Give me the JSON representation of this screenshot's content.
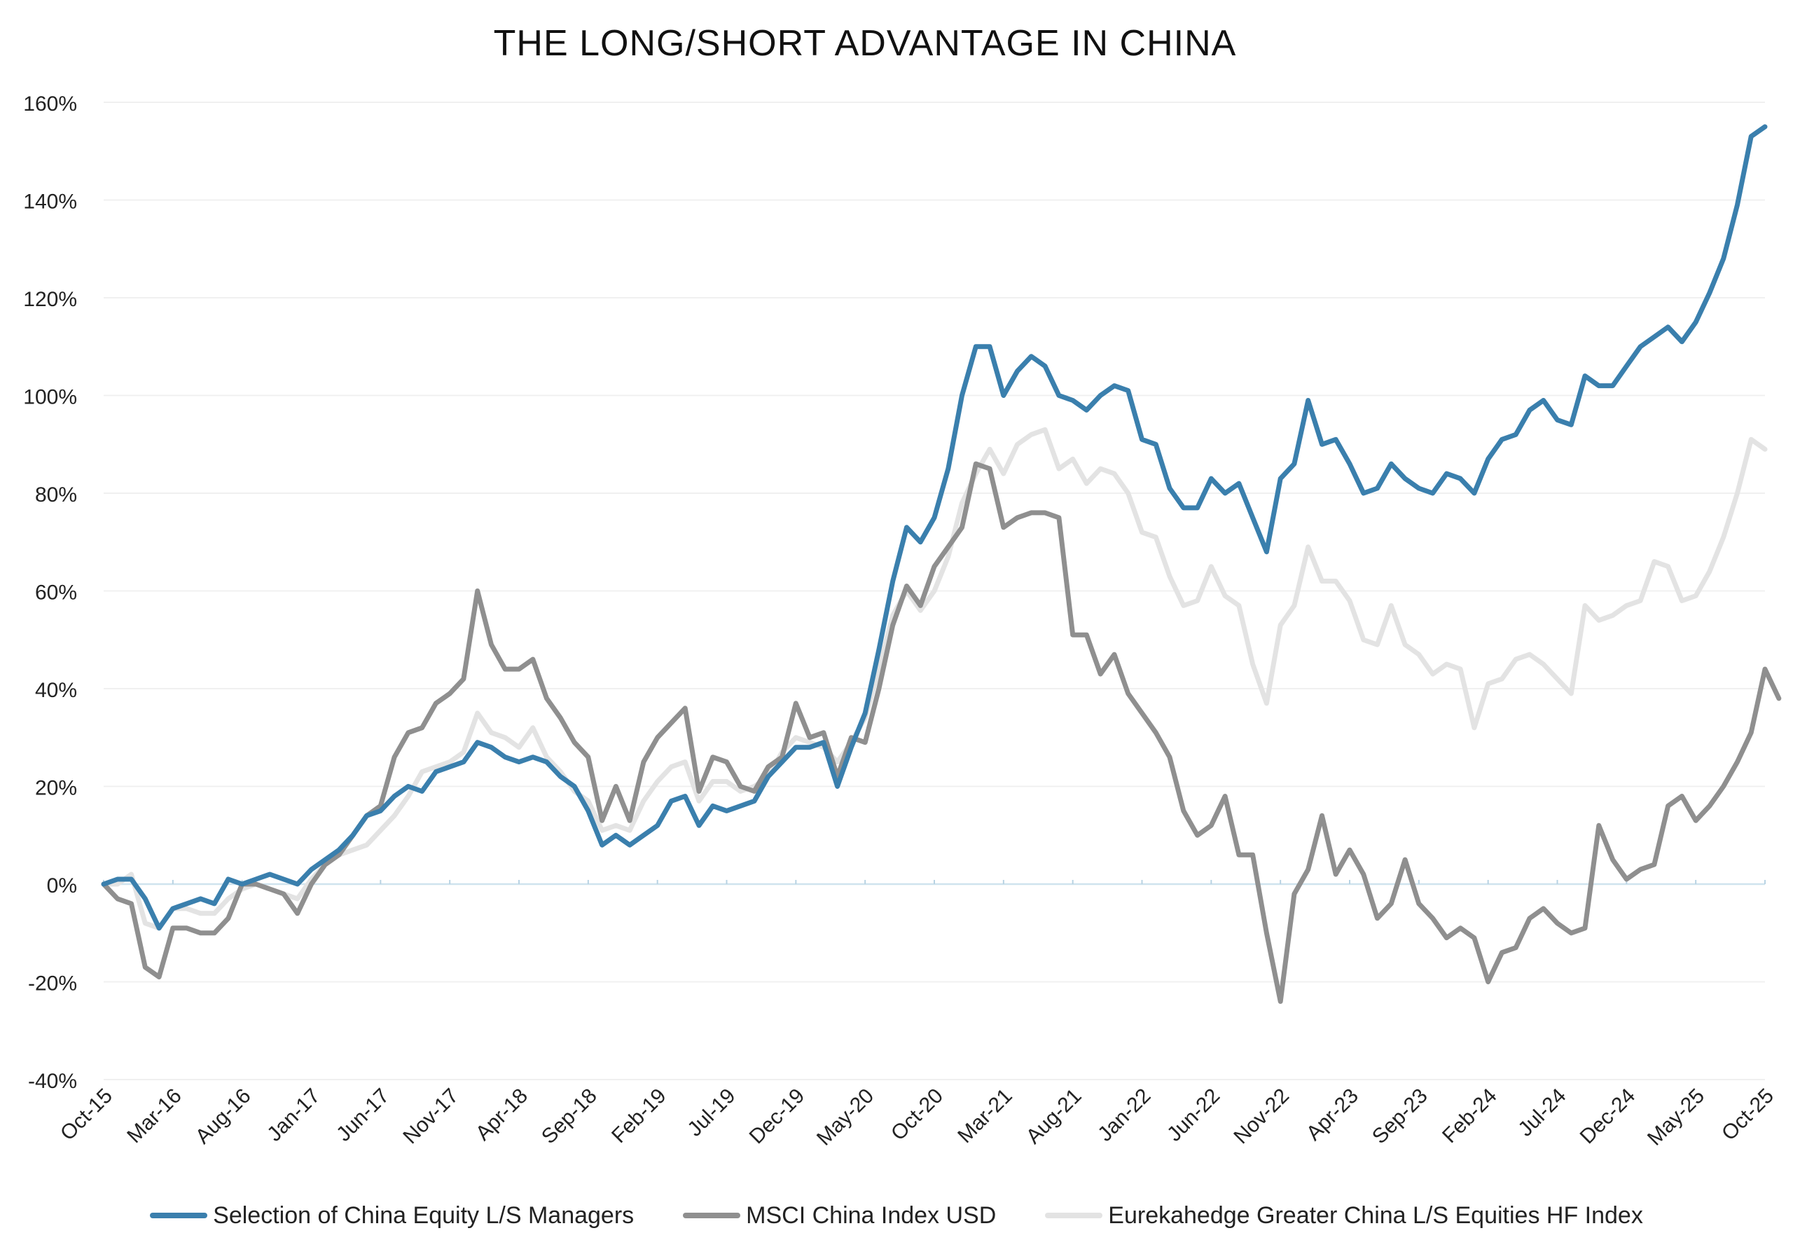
{
  "chart_data": {
    "type": "line",
    "title": "THE LONG/SHORT ADVANTAGE IN CHINA",
    "xlabel": "",
    "ylabel": "",
    "ylim": [
      -40,
      160
    ],
    "yticks": [
      160,
      140,
      120,
      100,
      80,
      60,
      40,
      20,
      0,
      -20,
      -40
    ],
    "ytick_labels": [
      "160%",
      "140%",
      "120%",
      "100%",
      "80%",
      "60%",
      "40%",
      "20%",
      "0%",
      "-20%",
      "-40%"
    ],
    "x_tick_labels": [
      "Oct-15",
      "Mar-16",
      "Aug-16",
      "Jan-17",
      "Jun-17",
      "Nov-17",
      "Apr-18",
      "Sep-18",
      "Feb-19",
      "Jul-19",
      "Dec-19",
      "May-20",
      "Oct-20",
      "Mar-21",
      "Aug-21",
      "Jan-22",
      "Jun-22",
      "Nov-22",
      "Apr-23",
      "Sep-23",
      "Feb-24",
      "Jul-24",
      "Dec-24",
      "May-25",
      "Oct-25"
    ],
    "x_tick_step_months": 5,
    "n_points": 121,
    "grid": true,
    "legend_position": "bottom",
    "series": [
      {
        "name": "Selection of China Equity L/S Managers",
        "color": "#3a7fad",
        "values": [
          0,
          1,
          1,
          -3,
          -9,
          -5,
          -4,
          -3,
          -4,
          1,
          0,
          1,
          2,
          1,
          0,
          3,
          5,
          7,
          10,
          14,
          15,
          18,
          20,
          19,
          23,
          24,
          25,
          29,
          28,
          26,
          25,
          26,
          25,
          22,
          20,
          15,
          8,
          10,
          8,
          10,
          12,
          17,
          18,
          12,
          16,
          15,
          16,
          17,
          22,
          25,
          28,
          28,
          29,
          20,
          28,
          35,
          48,
          62,
          73,
          70,
          75,
          85,
          100,
          110,
          110,
          100,
          105,
          108,
          106,
          100,
          99,
          97,
          100,
          102,
          101,
          91,
          90,
          81,
          77,
          77,
          83,
          80,
          82,
          75,
          68,
          83,
          86,
          99,
          90,
          91,
          86,
          80,
          81,
          86,
          83,
          81,
          80,
          84,
          83,
          80,
          87,
          91,
          92,
          97,
          99,
          95,
          94,
          104,
          102,
          102,
          106,
          110,
          112,
          114,
          111,
          115,
          121,
          128,
          139,
          153,
          155
        ]
      },
      {
        "name": "MSCI China Index USD",
        "color": "#8f8f8f",
        "values": [
          0,
          -3,
          -4,
          -17,
          -19,
          -9,
          -9,
          -10,
          -10,
          -7,
          0,
          0,
          -1,
          -2,
          -6,
          0,
          4,
          6,
          10,
          14,
          16,
          26,
          31,
          32,
          37,
          39,
          42,
          60,
          49,
          44,
          44,
          46,
          38,
          34,
          29,
          26,
          13,
          20,
          13,
          25,
          30,
          33,
          36,
          19,
          26,
          25,
          20,
          19,
          24,
          26,
          37,
          30,
          31,
          22,
          30,
          29,
          40,
          53,
          61,
          57,
          65,
          69,
          73,
          86,
          85,
          73,
          75,
          76,
          76,
          75,
          51,
          51,
          43,
          47,
          39,
          35,
          31,
          26,
          15,
          10,
          12,
          18,
          6,
          6,
          -10,
          -24,
          -2,
          3,
          14,
          2,
          7,
          2,
          -7,
          -4,
          5,
          -4,
          -7,
          -11,
          -9,
          -11,
          -20,
          -14,
          -13,
          -7,
          -5,
          -8,
          -10,
          -9,
          12,
          5,
          1,
          3,
          4,
          16,
          18,
          13,
          16,
          20,
          25,
          31,
          44,
          38
        ]
      },
      {
        "name": "Eurekahedge Greater China L/S Equities HF Index",
        "color": "#e3e3e3",
        "values": [
          0,
          0,
          2,
          -8,
          -9,
          -5,
          -5,
          -6,
          -6,
          -3,
          -1,
          0,
          -1,
          -2,
          -3,
          1,
          4,
          6,
          7,
          8,
          11,
          14,
          18,
          23,
          24,
          25,
          27,
          35,
          31,
          30,
          28,
          32,
          26,
          23,
          19,
          17,
          11,
          12,
          11,
          17,
          21,
          24,
          25,
          17,
          21,
          21,
          19,
          20,
          22,
          27,
          30,
          29,
          28,
          25,
          29,
          34,
          44,
          55,
          60,
          56,
          60,
          67,
          78,
          84,
          89,
          84,
          90,
          92,
          93,
          85,
          87,
          82,
          85,
          84,
          80,
          72,
          71,
          63,
          57,
          58,
          65,
          59,
          57,
          45,
          37,
          53,
          57,
          69,
          62,
          62,
          58,
          50,
          49,
          57,
          49,
          47,
          43,
          45,
          44,
          32,
          41,
          42,
          46,
          47,
          45,
          42,
          39,
          57,
          54,
          55,
          57,
          58,
          66,
          65,
          58,
          59,
          64,
          71,
          80,
          91,
          89
        ]
      }
    ]
  }
}
